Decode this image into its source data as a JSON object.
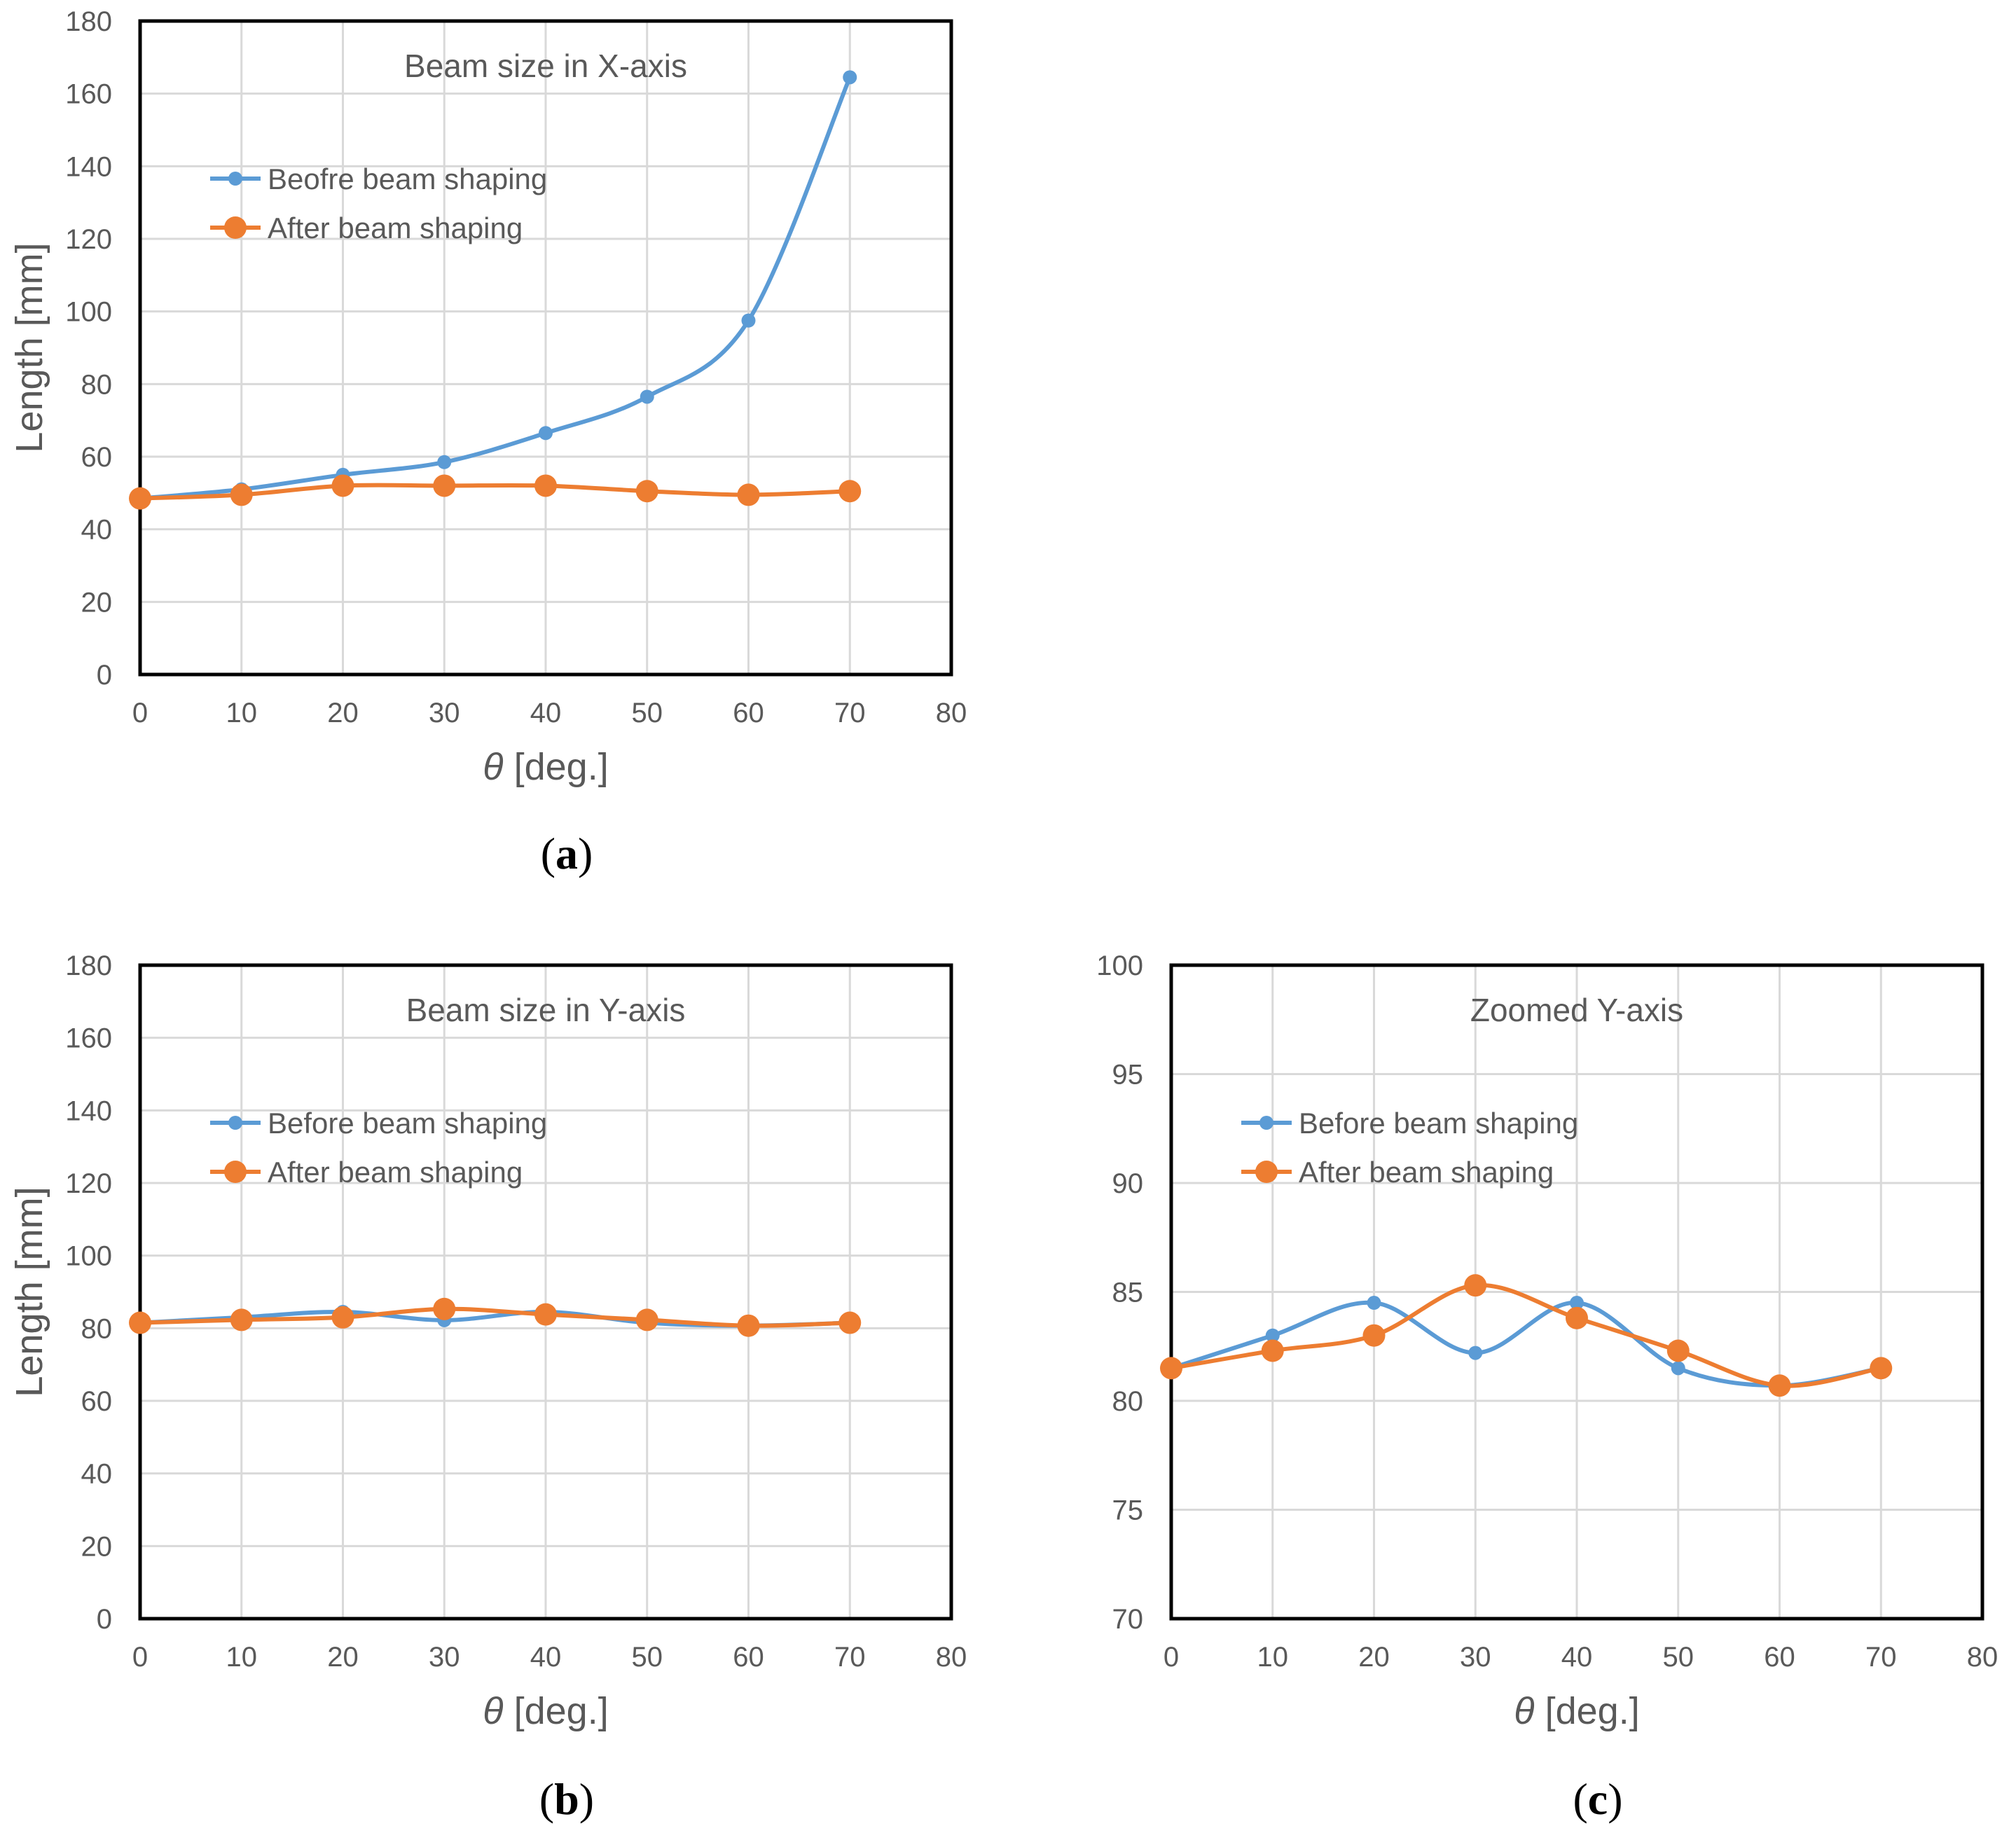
{
  "colors": {
    "before": "#5b9bd5",
    "after": "#ed7d31",
    "grid": "#d9d9d9",
    "text": "#595959",
    "frame": "#000000"
  },
  "chart_data": [
    {
      "id": "a",
      "type": "line",
      "panel_label": "a",
      "title": "Beam size in X-axis",
      "xlabel_symbol": "θ",
      "xlabel_text": " [deg.]",
      "ylabel": "Length [mm]",
      "xlim": [
        0,
        80
      ],
      "ylim": [
        0,
        180
      ],
      "xticks": [
        0,
        10,
        20,
        30,
        40,
        50,
        60,
        70,
        80
      ],
      "yticks": [
        0,
        20,
        40,
        60,
        80,
        100,
        120,
        140,
        160,
        180
      ],
      "legend_position": "upper-left",
      "x": [
        0,
        10,
        20,
        30,
        40,
        50,
        60,
        70
      ],
      "series": [
        {
          "name": "Beofre beam shaping",
          "key": "before",
          "values": [
            48.5,
            51,
            55,
            58.5,
            66.5,
            76.5,
            97.5,
            164.5
          ]
        },
        {
          "name": "After beam shaping",
          "key": "after",
          "values": [
            48.5,
            49.5,
            52,
            52,
            52,
            50.5,
            49.5,
            50.5
          ]
        }
      ]
    },
    {
      "id": "b",
      "type": "line",
      "panel_label": "b",
      "title": "Beam size in Y-axis",
      "xlabel_symbol": "θ",
      "xlabel_text": " [deg.]",
      "ylabel": "Length [mm]",
      "xlim": [
        0,
        80
      ],
      "ylim": [
        0,
        180
      ],
      "xticks": [
        0,
        10,
        20,
        30,
        40,
        50,
        60,
        70,
        80
      ],
      "yticks": [
        0,
        20,
        40,
        60,
        80,
        100,
        120,
        140,
        160,
        180
      ],
      "legend_position": "upper-left",
      "x": [
        0,
        10,
        20,
        30,
        40,
        50,
        60,
        70
      ],
      "series": [
        {
          "name": "Before beam shaping",
          "key": "before",
          "values": [
            81.5,
            83,
            84.5,
            82.2,
            84.5,
            81.5,
            80.7,
            81.5
          ]
        },
        {
          "name": "After beam shaping",
          "key": "after",
          "values": [
            81.5,
            82.3,
            83,
            85.3,
            83.8,
            82.3,
            80.7,
            81.5
          ]
        }
      ]
    },
    {
      "id": "c",
      "type": "line",
      "panel_label": "c",
      "title": "Zoomed Y-axis",
      "xlabel_symbol": "θ",
      "xlabel_text": " [deg.]",
      "ylabel": "Length [mm]",
      "xlim": [
        0,
        80
      ],
      "ylim": [
        70,
        100
      ],
      "xticks": [
        0,
        10,
        20,
        30,
        40,
        50,
        60,
        70,
        80
      ],
      "yticks": [
        70,
        75,
        80,
        85,
        90,
        95,
        100
      ],
      "legend_position": "upper-left",
      "x": [
        0,
        10,
        20,
        30,
        40,
        50,
        60,
        70
      ],
      "series": [
        {
          "name": "Before beam shaping",
          "key": "before",
          "values": [
            81.5,
            83,
            84.5,
            82.2,
            84.5,
            81.5,
            80.7,
            81.5
          ]
        },
        {
          "name": "After beam shaping",
          "key": "after",
          "values": [
            81.5,
            82.3,
            83,
            85.3,
            83.8,
            82.3,
            80.7,
            81.5
          ]
        }
      ]
    }
  ]
}
